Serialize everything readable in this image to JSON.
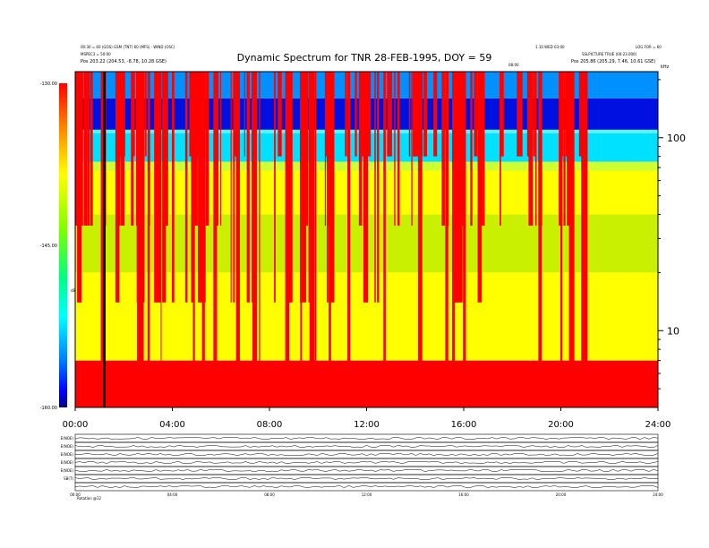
{
  "header": {
    "title": "Dynamic Spectrum for TNR 28-FEB-1995, DOY = 59",
    "left_line1": "00:30 = 60 (GOS) GSM (TNT) 60 (MFS) - WIND (OSC)",
    "left_line2": "MSPEC3 = 50:00",
    "left_line3": "Pos   203.22 (204.53, -8.78, 10.28 GSE)",
    "right_line1": "1.10 WED 03:00",
    "right_line2": "LOG FOR = 60",
    "right_line3": "SSLPICTURE TRUE (00:23.000)",
    "right_line4": "Pos   205.86 (205.29, 7.46, 10.61 GSE)",
    "mid_small": "08:00",
    "right_unit": "kHz"
  },
  "colorbar": {
    "label": "dB",
    "ticks": [
      {
        "value": -130,
        "label": "-130.00"
      },
      {
        "value": -145,
        "label": "-145.00"
      },
      {
        "value": -160,
        "label": "-160.00"
      }
    ],
    "colors": [
      "#ff0000",
      "#ff8000",
      "#ffff00",
      "#80ff00",
      "#00ff80",
      "#00ffff",
      "#0080ff",
      "#0000ff",
      "#000080"
    ]
  },
  "chart_data": {
    "type": "heatmap",
    "title": "Dynamic Spectrum for TNR 28-FEB-1995, DOY = 59",
    "x": {
      "label": "",
      "range": [
        "00:00",
        "24:00"
      ],
      "ticks": [
        "00:00",
        "04:00",
        "08:00",
        "12:00",
        "16:00",
        "20:00",
        "24:00"
      ]
    },
    "y": {
      "label": "kHz",
      "scale": "log",
      "range": [
        4,
        220
      ],
      "ticks": [
        10,
        100
      ]
    },
    "z": {
      "label": "dB",
      "range": [
        -160,
        -130
      ]
    },
    "bands": [
      {
        "freq_range": [
          4,
          7
        ],
        "level": "red"
      },
      {
        "freq_range": [
          7,
          20
        ],
        "level": "yellow"
      },
      {
        "freq_range": [
          20,
          40
        ],
        "level": "yellow-green"
      },
      {
        "freq_range": [
          40,
          75
        ],
        "level": "yellow"
      },
      {
        "freq_range": [
          75,
          110
        ],
        "level": "cyan"
      },
      {
        "freq_range": [
          110,
          160
        ],
        "level": "blue"
      },
      {
        "freq_range": [
          160,
          220
        ],
        "level": "cyan-blue"
      }
    ]
  },
  "panels": {
    "labels": [
      "E(NOE)",
      "E(NOE)",
      "E(NOE)",
      "E(NOE)",
      "E(NOE)",
      "SB(T)",
      ""
    ],
    "ticks": [
      "00:00",
      "04:00",
      "08:00",
      "12:00",
      "16:00",
      "20:00",
      "24:00"
    ],
    "footer_left": "Rotation  @12"
  }
}
